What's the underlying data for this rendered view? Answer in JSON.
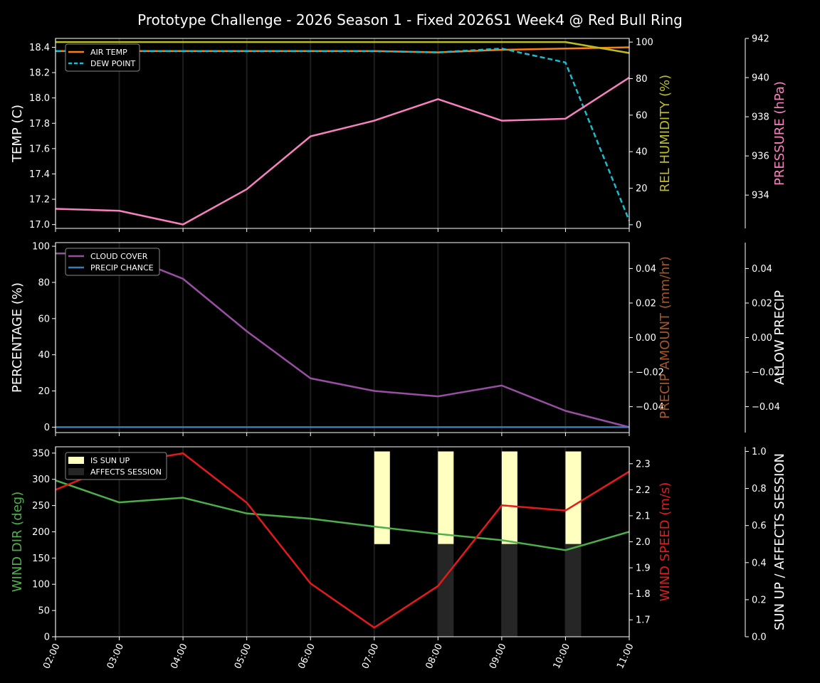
{
  "title": "Prototype Challenge  - 2026 Season 1 - Fixed 2026S1 Week4 @ Red Bull Ring",
  "colors": {
    "background": "#000000",
    "axis": "#ffffff",
    "air_temp": "#ff7f0e",
    "dew_point": "#17becf",
    "humidity": "#bcbd22",
    "pressure": "#f781bf",
    "cloud_cover": "#984ea3",
    "precip_chance": "#377eb8",
    "precip_amount": "#a65628",
    "wind_dir": "#4daf4a",
    "wind_speed": "#e41a1c",
    "sun_up": "#ffffc0",
    "affects_session": "#262626"
  },
  "chart_data": [
    {
      "type": "line",
      "x": [
        "02:00",
        "03:00",
        "04:00",
        "05:00",
        "06:00",
        "07:00",
        "08:00",
        "09:00",
        "10:00",
        "11:00"
      ],
      "xlabel": "",
      "grid": "vertical",
      "legend_position": "top-left",
      "axes": {
        "left": {
          "label": "TEMP (C)",
          "ylim": [
            16.97,
            18.47
          ],
          "ticks": [
            "17.0",
            "17.2",
            "17.4",
            "17.6",
            "17.8",
            "18.0",
            "18.2",
            "18.4"
          ]
        },
        "right": {
          "label": "REL HUMIDITY (%)",
          "ylim": [
            -2,
            102
          ],
          "ticks": [
            "0",
            "20",
            "40",
            "60",
            "80",
            "100"
          ]
        },
        "right2": {
          "label": "PRESSURE (hPa)",
          "ylim": [
            932.3,
            942.0
          ],
          "ticks": [
            "934",
            "936",
            "938",
            "940",
            "942"
          ]
        }
      },
      "series": [
        {
          "name": "AIR TEMP",
          "axis": "left",
          "style": "solid",
          "values": [
            18.37,
            18.37,
            18.37,
            18.37,
            18.37,
            18.37,
            18.36,
            18.38,
            18.39,
            18.4
          ]
        },
        {
          "name": "DEW POINT",
          "axis": "left",
          "style": "dashed",
          "values": [
            18.37,
            18.37,
            18.37,
            18.37,
            18.37,
            18.37,
            18.36,
            18.39,
            18.28,
            17.03
          ]
        },
        {
          "axis": "right",
          "style": "solid",
          "values": [
            100,
            100,
            100,
            100,
            100,
            100,
            100,
            100,
            100,
            94
          ]
        },
        {
          "axis": "right2",
          "style": "solid",
          "values": [
            933.3,
            933.2,
            932.5,
            934.3,
            937.0,
            937.8,
            938.9,
            937.8,
            937.9,
            940.0
          ]
        }
      ]
    },
    {
      "type": "line",
      "x": [
        "02:00",
        "03:00",
        "04:00",
        "05:00",
        "06:00",
        "07:00",
        "08:00",
        "09:00",
        "10:00",
        "11:00"
      ],
      "xlabel": "",
      "grid": "vertical",
      "legend_position": "top-left",
      "axes": {
        "left": {
          "label": "PERCENTAGE (%)",
          "ylim": [
            -3,
            102
          ],
          "ticks": [
            "0",
            "20",
            "40",
            "60",
            "80",
            "100"
          ]
        },
        "right": {
          "label": "PRECIP AMOUNT (mm/hr)",
          "ylim": [
            -0.055,
            0.055
          ],
          "ticks": [
            "−0.04",
            "−0.02",
            "0.00",
            "0.02",
            "0.04"
          ]
        },
        "right2": {
          "label": "ALLOW PRECIP",
          "ylim": [
            -0.055,
            0.055
          ],
          "ticks": [
            "−0.04",
            "−0.02",
            "0.00",
            "0.02",
            "0.04"
          ]
        }
      },
      "series": [
        {
          "name": "CLOUD COVER",
          "axis": "left",
          "style": "solid",
          "values": [
            96,
            96,
            82,
            53,
            27,
            20,
            17,
            23,
            9,
            0
          ]
        },
        {
          "name": "PRECIP CHANCE",
          "axis": "left",
          "style": "solid",
          "values": [
            0,
            0,
            0,
            0,
            0,
            0,
            0,
            0,
            0,
            0
          ]
        }
      ]
    },
    {
      "type": "line",
      "x": [
        "02:00",
        "03:00",
        "04:00",
        "05:00",
        "06:00",
        "07:00",
        "08:00",
        "09:00",
        "10:00",
        "11:00"
      ],
      "xlabel": "",
      "grid": "vertical",
      "legend_position": "top-left",
      "axes": {
        "left": {
          "label": "WIND DIR (deg)",
          "ylim": [
            0,
            362
          ],
          "ticks": [
            "0",
            "50",
            "100",
            "150",
            "200",
            "250",
            "300",
            "350"
          ]
        },
        "right": {
          "label": "WIND SPEED (m/s)",
          "ylim": [
            1.635,
            2.365
          ],
          "ticks": [
            "1.7",
            "1.8",
            "1.9",
            "2.0",
            "2.1",
            "2.2",
            "2.3"
          ]
        },
        "right2": {
          "label": "SUN UP / AFFECTS SESSION",
          "ylim": [
            0,
            1.025
          ],
          "ticks": [
            "0.0",
            "0.2",
            "0.4",
            "0.6",
            "0.8",
            "1.0"
          ]
        }
      },
      "bars": [
        {
          "name": "IS SUN UP",
          "axis": "right2",
          "x": [
            "07:00",
            "08:00",
            "09:00",
            "10:00"
          ],
          "bottom": 0.5,
          "top": 1.0
        },
        {
          "name": "AFFECTS SESSION",
          "axis": "right2",
          "x": [
            "08:00",
            "09:00",
            "10:00"
          ],
          "bottom": 0.0,
          "top": 0.5
        }
      ],
      "series": [
        {
          "axis": "left",
          "style": "solid",
          "values": [
            298,
            256,
            265,
            235,
            225,
            210,
            196,
            184,
            165,
            200
          ]
        },
        {
          "axis": "right",
          "style": "solid",
          "values": [
            2.2,
            2.3,
            2.34,
            2.15,
            1.84,
            1.67,
            1.83,
            2.14,
            2.12,
            2.27
          ]
        }
      ]
    }
  ]
}
